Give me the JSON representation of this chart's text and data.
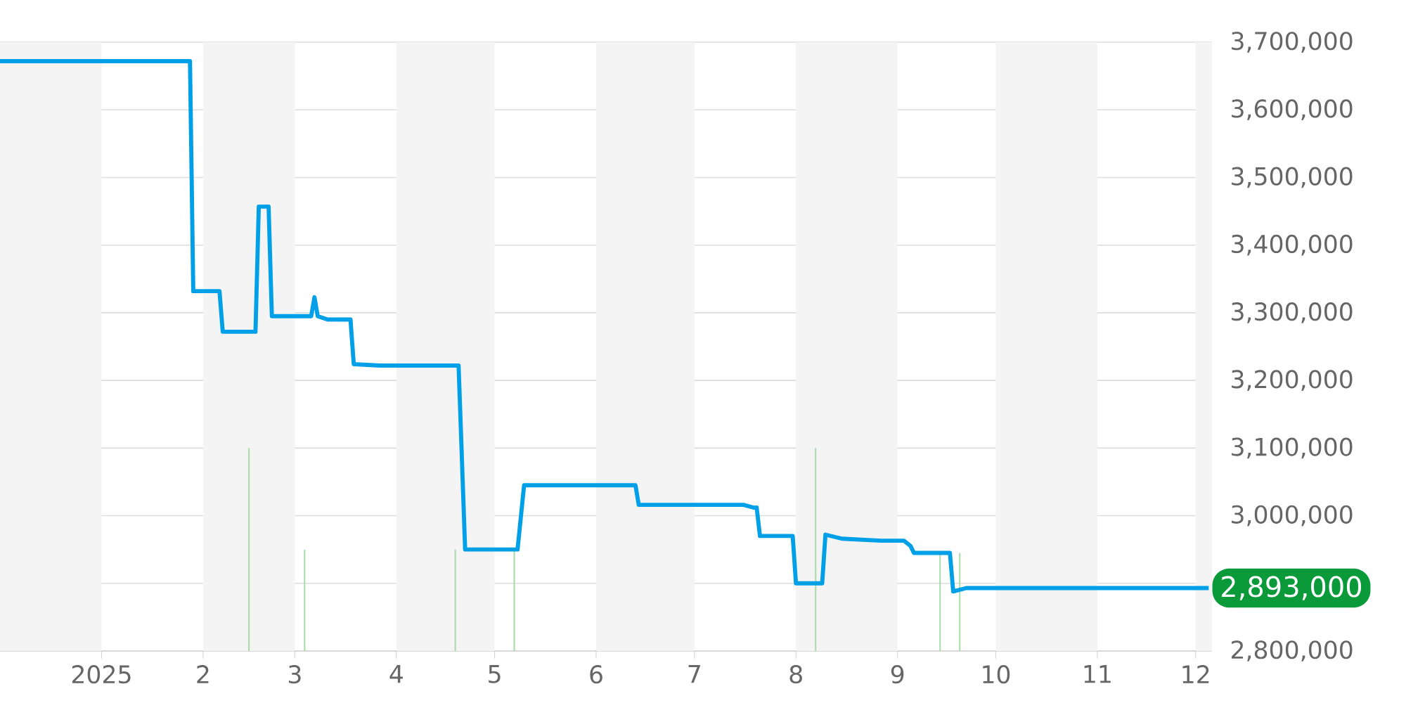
{
  "chart_data": {
    "type": "line",
    "xlim": [
      "2024-12-01",
      "2025-12-06"
    ],
    "xticks": [
      {
        "value": "2025-01-01",
        "label": "2025"
      },
      {
        "value": "2025-02-01",
        "label": "2"
      },
      {
        "value": "2025-03-01",
        "label": "3"
      },
      {
        "value": "2025-04-01",
        "label": "4"
      },
      {
        "value": "2025-05-01",
        "label": "5"
      },
      {
        "value": "2025-06-01",
        "label": "6"
      },
      {
        "value": "2025-07-01",
        "label": "7"
      },
      {
        "value": "2025-08-01",
        "label": "8"
      },
      {
        "value": "2025-09-01",
        "label": "9"
      },
      {
        "value": "2025-10-01",
        "label": "10"
      },
      {
        "value": "2025-11-01",
        "label": "11"
      },
      {
        "value": "2025-12-01",
        "label": "12"
      }
    ],
    "ylim": [
      2800000,
      3700000
    ],
    "yticks": [
      {
        "value": 2800000,
        "label": "2,800,000"
      },
      {
        "value": 2900000,
        "label": null
      },
      {
        "value": 3000000,
        "label": "3,000,000"
      },
      {
        "value": 3100000,
        "label": "3,100,000"
      },
      {
        "value": 3200000,
        "label": "3,200,000"
      },
      {
        "value": 3300000,
        "label": "3,300,000"
      },
      {
        "value": 3400000,
        "label": "3,400,000"
      },
      {
        "value": 3500000,
        "label": "3,500,000"
      },
      {
        "value": 3600000,
        "label": "3,600,000"
      },
      {
        "value": 3700000,
        "label": "3,700,000"
      }
    ],
    "grid": "y",
    "bands": [
      {
        "axis": "x",
        "from": "2024-12-01",
        "to": "2025-01-01",
        "color": "#f4f4f4"
      },
      {
        "axis": "x",
        "from": "2025-02-01",
        "to": "2025-03-01",
        "color": "#f4f4f4"
      },
      {
        "axis": "x",
        "from": "2025-04-01",
        "to": "2025-05-01",
        "color": "#f4f4f4"
      },
      {
        "axis": "x",
        "from": "2025-06-01",
        "to": "2025-07-01",
        "color": "#f4f4f4"
      },
      {
        "axis": "x",
        "from": "2025-08-01",
        "to": "2025-09-01",
        "color": "#f4f4f4"
      },
      {
        "axis": "x",
        "from": "2025-10-01",
        "to": "2025-11-01",
        "color": "#f4f4f4"
      },
      {
        "axis": "x",
        "from": "2025-12-01",
        "to": "2025-12-06",
        "color": "#f4f4f4"
      }
    ],
    "series": [
      {
        "type": "bar",
        "color": "#a8dca8",
        "x": [
          "2025-02-15",
          "2025-03-04",
          "2025-04-19",
          "2025-05-07",
          "2025-08-07",
          "2025-09-14",
          "2025-09-20"
        ],
        "values": [
          3100000,
          2950000,
          2950000,
          2950000,
          3100000,
          2945000,
          2945000
        ]
      },
      {
        "color": "#00a0e9",
        "x": [
          "2024-12-01",
          "2025-01-28",
          "2025-01-29",
          "2025-02-06",
          "2025-02-07",
          "2025-02-17",
          "2025-02-18",
          "2025-02-21",
          "2025-02-22",
          "2025-03-06",
          "2025-03-07",
          "2025-03-08",
          "2025-03-11",
          "2025-03-18",
          "2025-03-19",
          "2025-03-27",
          "2025-04-20",
          "2025-04-22",
          "2025-05-08",
          "2025-05-10",
          "2025-06-13",
          "2025-06-14",
          "2025-07-16",
          "2025-07-19",
          "2025-07-20",
          "2025-07-21",
          "2025-07-31",
          "2025-08-01",
          "2025-08-09",
          "2025-08-10",
          "2025-08-15",
          "2025-08-27",
          "2025-09-03",
          "2025-09-05",
          "2025-09-06",
          "2025-09-17",
          "2025-09-18",
          "2025-09-22",
          "2025-12-05"
        ],
        "values": [
          3672000,
          3672000,
          3332000,
          3332000,
          3272000,
          3272000,
          3457000,
          3457000,
          3295000,
          3295000,
          3323000,
          3295000,
          3290000,
          3290000,
          3224000,
          3222000,
          3222000,
          2950000,
          2950000,
          3045000,
          3045000,
          3016000,
          3016000,
          3012000,
          3012000,
          2970000,
          2970000,
          2900000,
          2900000,
          2972000,
          2966000,
          2963000,
          2963000,
          2955000,
          2945000,
          2945000,
          2888000,
          2893000,
          2893000
        ]
      }
    ],
    "annotations": [
      {
        "text": "2,893,000",
        "x": "2025-12-05",
        "y": 2893000
      }
    ]
  }
}
